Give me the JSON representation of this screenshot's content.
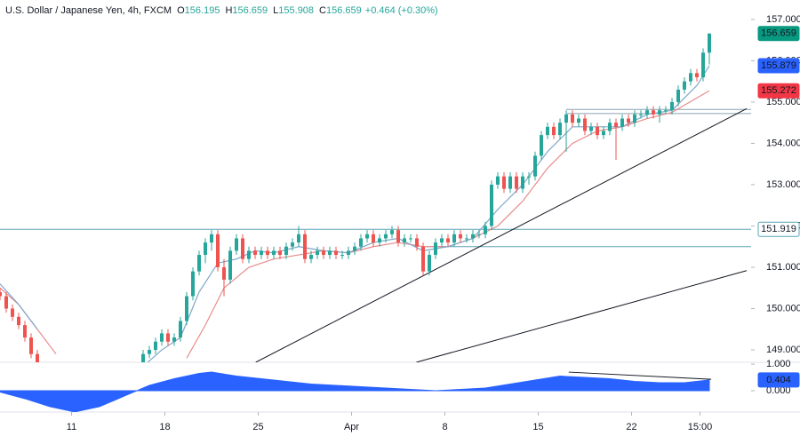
{
  "chart_data": {
    "type": "candlestick",
    "header": {
      "symbol": "U.S. Dollar / Japanese Yen, 4h, FXCM",
      "fields": [
        {
          "label": "O",
          "value": "156.195"
        },
        {
          "label": "H",
          "value": "156.659"
        },
        {
          "label": "L",
          "value": "155.908"
        },
        {
          "label": "C",
          "value": "156.659"
        }
      ],
      "change": "+0.464 (+0.30%)"
    },
    "up_color": "#26a69a",
    "down_color": "#ef5350",
    "x": [
      0,
      1,
      2,
      3,
      4,
      5,
      6,
      23,
      24,
      25,
      26,
      27,
      28,
      29,
      30,
      31,
      32,
      33,
      34,
      35,
      36,
      37,
      38,
      39,
      40,
      41,
      42,
      43,
      44,
      45,
      46,
      47,
      48,
      49,
      50,
      51,
      52,
      53,
      54,
      55,
      56,
      57,
      58,
      59,
      60,
      61,
      62,
      63,
      64,
      65,
      66,
      67,
      68,
      69,
      70,
      71,
      72,
      73,
      74,
      75,
      76,
      77,
      78,
      79,
      80,
      81,
      82,
      83,
      84,
      85,
      86,
      87,
      88,
      89,
      90,
      91,
      92,
      93,
      94,
      95,
      96,
      97,
      98,
      99,
      100,
      101,
      102,
      103,
      104,
      105,
      106,
      107,
      108,
      109,
      110,
      111,
      112,
      113,
      114
    ],
    "candles": [
      [
        150.4,
        150.5,
        150.2,
        150.3
      ],
      [
        150.3,
        150.4,
        149.9,
        150.0
      ],
      [
        150.0,
        150.1,
        149.7,
        149.8
      ],
      [
        149.8,
        149.9,
        149.5,
        149.6
      ],
      [
        149.6,
        149.7,
        149.2,
        149.3
      ],
      [
        149.3,
        149.4,
        148.8,
        148.9
      ],
      [
        148.9,
        149.0,
        148.4,
        148.5
      ],
      [
        148.6,
        149.0,
        148.5,
        148.9
      ],
      [
        148.9,
        149.1,
        148.8,
        149.0
      ],
      [
        149.0,
        149.3,
        148.9,
        149.2
      ],
      [
        149.2,
        149.5,
        149.1,
        149.4
      ],
      [
        149.4,
        149.5,
        149.1,
        149.2
      ],
      [
        149.2,
        149.4,
        149.1,
        149.3
      ],
      [
        149.3,
        149.8,
        149.2,
        149.7
      ],
      [
        149.7,
        150.4,
        149.6,
        150.3
      ],
      [
        150.3,
        151.0,
        150.2,
        150.9
      ],
      [
        150.9,
        151.4,
        150.8,
        151.3
      ],
      [
        151.3,
        151.7,
        151.1,
        151.6
      ],
      [
        151.6,
        151.9,
        151.4,
        151.8
      ],
      [
        151.8,
        151.9,
        150.9,
        151.0
      ],
      [
        151.0,
        151.2,
        150.3,
        150.7
      ],
      [
        150.7,
        151.5,
        150.6,
        151.4
      ],
      [
        151.4,
        151.8,
        151.3,
        151.7
      ],
      [
        151.7,
        151.8,
        151.1,
        151.2
      ],
      [
        151.2,
        151.5,
        151.1,
        151.4
      ],
      [
        151.4,
        151.5,
        151.2,
        151.3
      ],
      [
        151.3,
        151.5,
        151.2,
        151.4
      ],
      [
        151.4,
        151.5,
        151.2,
        151.3
      ],
      [
        151.3,
        151.5,
        151.2,
        151.4
      ],
      [
        151.4,
        151.5,
        151.2,
        151.3
      ],
      [
        151.3,
        151.6,
        151.2,
        151.5
      ],
      [
        151.5,
        151.7,
        151.4,
        151.6
      ],
      [
        151.6,
        152.0,
        151.5,
        151.8
      ],
      [
        151.8,
        151.9,
        151.1,
        151.2
      ],
      [
        151.2,
        151.4,
        151.1,
        151.3
      ],
      [
        151.3,
        151.5,
        151.2,
        151.4
      ],
      [
        151.4,
        151.5,
        151.2,
        151.3
      ],
      [
        151.3,
        151.5,
        151.2,
        151.4
      ],
      [
        151.4,
        151.5,
        151.2,
        151.3
      ],
      [
        151.3,
        151.4,
        151.2,
        151.3
      ],
      [
        151.3,
        151.5,
        151.2,
        151.4
      ],
      [
        151.4,
        151.6,
        151.3,
        151.5
      ],
      [
        151.5,
        151.8,
        151.4,
        151.7
      ],
      [
        151.7,
        151.9,
        151.6,
        151.8
      ],
      [
        151.8,
        151.9,
        151.5,
        151.6
      ],
      [
        151.6,
        151.8,
        151.5,
        151.7
      ],
      [
        151.7,
        151.9,
        151.6,
        151.8
      ],
      [
        151.8,
        152.0,
        151.7,
        151.9
      ],
      [
        151.9,
        152.0,
        151.5,
        151.6
      ],
      [
        151.6,
        151.8,
        151.5,
        151.7
      ],
      [
        151.7,
        151.8,
        151.6,
        151.7
      ],
      [
        151.7,
        151.8,
        151.4,
        151.5
      ],
      [
        151.5,
        151.6,
        150.8,
        150.9
      ],
      [
        150.9,
        151.4,
        150.8,
        151.3
      ],
      [
        151.3,
        151.7,
        151.2,
        151.6
      ],
      [
        151.6,
        151.8,
        151.5,
        151.7
      ],
      [
        151.7,
        151.8,
        151.5,
        151.6
      ],
      [
        151.6,
        151.9,
        151.5,
        151.8
      ],
      [
        151.8,
        151.9,
        151.6,
        151.7
      ],
      [
        151.7,
        151.8,
        151.6,
        151.7
      ],
      [
        151.7,
        151.9,
        151.6,
        151.8
      ],
      [
        151.8,
        151.9,
        151.7,
        151.8
      ],
      [
        151.8,
        152.1,
        151.7,
        152.0
      ],
      [
        152.0,
        153.1,
        151.9,
        153.0
      ],
      [
        153.0,
        153.3,
        152.9,
        153.2
      ],
      [
        153.2,
        153.3,
        152.8,
        152.9
      ],
      [
        152.9,
        153.3,
        152.8,
        153.2
      ],
      [
        153.2,
        153.3,
        152.8,
        152.9
      ],
      [
        152.9,
        153.3,
        152.8,
        153.2
      ],
      [
        153.2,
        153.3,
        153.0,
        153.2
      ],
      [
        153.2,
        153.8,
        153.1,
        153.7
      ],
      [
        153.7,
        154.3,
        153.6,
        154.2
      ],
      [
        154.2,
        154.5,
        154.1,
        154.4
      ],
      [
        154.4,
        154.5,
        154.1,
        154.2
      ],
      [
        154.2,
        154.6,
        154.1,
        154.5
      ],
      [
        154.5,
        154.8,
        153.8,
        154.7
      ],
      [
        154.7,
        154.8,
        154.4,
        154.5
      ],
      [
        154.5,
        154.7,
        154.4,
        154.6
      ],
      [
        154.6,
        154.7,
        154.2,
        154.3
      ],
      [
        154.3,
        154.5,
        154.2,
        154.4
      ],
      [
        154.4,
        154.5,
        154.1,
        154.2
      ],
      [
        154.2,
        154.4,
        154.1,
        154.3
      ],
      [
        154.3,
        154.6,
        154.2,
        154.5
      ],
      [
        154.5,
        154.6,
        153.6,
        154.4
      ],
      [
        154.4,
        154.7,
        154.3,
        154.6
      ],
      [
        154.6,
        154.7,
        154.4,
        154.5
      ],
      [
        154.5,
        154.8,
        154.4,
        154.7
      ],
      [
        154.7,
        154.8,
        154.6,
        154.7
      ],
      [
        154.7,
        154.9,
        154.6,
        154.8
      ],
      [
        154.8,
        154.9,
        154.6,
        154.7
      ],
      [
        154.7,
        154.9,
        154.5,
        154.8
      ],
      [
        154.8,
        154.9,
        154.7,
        154.8
      ],
      [
        154.8,
        155.1,
        154.7,
        155.0
      ],
      [
        155.0,
        155.4,
        154.9,
        155.3
      ],
      [
        155.3,
        155.6,
        155.2,
        155.5
      ],
      [
        155.5,
        155.8,
        155.4,
        155.7
      ],
      [
        155.7,
        155.8,
        155.5,
        155.6
      ],
      [
        155.6,
        156.3,
        155.5,
        156.195
      ],
      [
        156.195,
        156.659,
        155.908,
        156.659
      ]
    ],
    "ma_fast": {
      "color": "#7fa6c9",
      "x": [
        0,
        3,
        6,
        15,
        23,
        26,
        29,
        32,
        35,
        38,
        41,
        44,
        48,
        52,
        56,
        60,
        64,
        68,
        72,
        76,
        80,
        84,
        88,
        92,
        96,
        100,
        104,
        108,
        112,
        114
      ],
      "values": [
        150.6,
        150.1,
        149.5,
        null,
        148.6,
        149.0,
        149.3,
        150.4,
        151.1,
        151.2,
        151.4,
        151.35,
        151.5,
        151.4,
        151.35,
        151.6,
        151.7,
        151.4,
        151.5,
        151.7,
        152.4,
        153.0,
        153.8,
        154.4,
        154.4,
        154.4,
        154.7,
        154.8,
        155.4,
        155.879
      ]
    },
    "ma_slow": {
      "color": "#e88c8c",
      "x": [
        0,
        3,
        6,
        9,
        20,
        30,
        33,
        36,
        40,
        44,
        48,
        52,
        56,
        60,
        64,
        68,
        72,
        76,
        80,
        84,
        88,
        92,
        96,
        100,
        104,
        108,
        112,
        114
      ],
      "values": [
        150.5,
        150.1,
        149.5,
        148.9,
        null,
        148.8,
        149.6,
        150.5,
        151.0,
        151.2,
        151.3,
        151.4,
        151.35,
        151.5,
        151.6,
        151.5,
        151.5,
        151.7,
        152.0,
        152.6,
        153.4,
        154.0,
        154.3,
        154.4,
        154.6,
        154.75,
        155.1,
        155.272
      ]
    },
    "levels": [
      {
        "price": 151.919,
        "from": 0,
        "color": "#5ba3b5"
      },
      {
        "price": 151.5,
        "from": 68.5,
        "color": "#5ba3b5"
      },
      {
        "price": 154.82,
        "from": 91,
        "color": "#8aa0b0"
      },
      {
        "price": 154.72,
        "from": 91,
        "color": "#8aa0b0"
      }
    ],
    "trendlines": [
      {
        "x": [
          41.1,
          120
        ],
        "price": [
          148.7,
          154.84
        ]
      },
      {
        "x": [
          66.9,
          120
        ],
        "price": [
          148.7,
          150.92
        ]
      }
    ],
    "xlim": [
      0,
      120
    ],
    "ylim": [
      148.7,
      157.47
    ],
    "yticks": [
      {
        "value": 149,
        "label": "149.000"
      },
      {
        "value": 150,
        "label": "150.000"
      },
      {
        "value": 151,
        "label": "151.000"
      },
      {
        "value": 152,
        "label": "152.000"
      },
      {
        "value": 153,
        "label": "153.000"
      },
      {
        "value": 154,
        "label": "154.000"
      },
      {
        "value": 155,
        "label": "155.000"
      },
      {
        "value": 156,
        "label": "156.000"
      },
      {
        "value": 157,
        "label": "157.000"
      }
    ],
    "xticks": [
      {
        "value": 11.5,
        "label": "11"
      },
      {
        "value": 26.5,
        "label": "18"
      },
      {
        "value": 41.5,
        "label": "25"
      },
      {
        "value": 56.5,
        "label": "Apr"
      },
      {
        "value": 71.5,
        "label": "8"
      },
      {
        "value": 86.5,
        "label": "15"
      },
      {
        "value": 101.5,
        "label": "22"
      },
      {
        "value": 112.5,
        "label": "15:00"
      }
    ],
    "price_labels": [
      {
        "value": 156.659,
        "color": "#089981"
      },
      {
        "value": 155.879,
        "color": "#2962ff"
      },
      {
        "value": 155.272,
        "color": "#f23645"
      },
      {
        "value": 151.919,
        "color": "#5ba3b5"
      }
    ],
    "oscillator": {
      "color": "#2962ff",
      "x": [
        0,
        4,
        8,
        12,
        16,
        20,
        24,
        28,
        32,
        34,
        38,
        42,
        46,
        50,
        54,
        58,
        62,
        66,
        70,
        74,
        78,
        82,
        86,
        90,
        94,
        98,
        102,
        106,
        110,
        114
      ],
      "values": [
        -0.05,
        -0.3,
        -0.6,
        -0.8,
        -0.6,
        -0.2,
        0.2,
        0.45,
        0.65,
        0.7,
        0.55,
        0.45,
        0.35,
        0.25,
        0.2,
        0.15,
        0.1,
        0.05,
        0.0,
        0.05,
        0.1,
        0.25,
        0.4,
        0.55,
        0.5,
        0.45,
        0.35,
        0.3,
        0.3,
        0.404
      ],
      "y2lim": [
        -0.87,
        1.07
      ],
      "y2ticks": [
        {
          "value": 1,
          "label": "1.000"
        },
        {
          "value": 0,
          "label": "0.000"
        }
      ],
      "trendline": {
        "x": [
          91.4,
          114.3
        ],
        "values": [
          0.7,
          0.43
        ]
      },
      "last_label": 0.404
    }
  }
}
